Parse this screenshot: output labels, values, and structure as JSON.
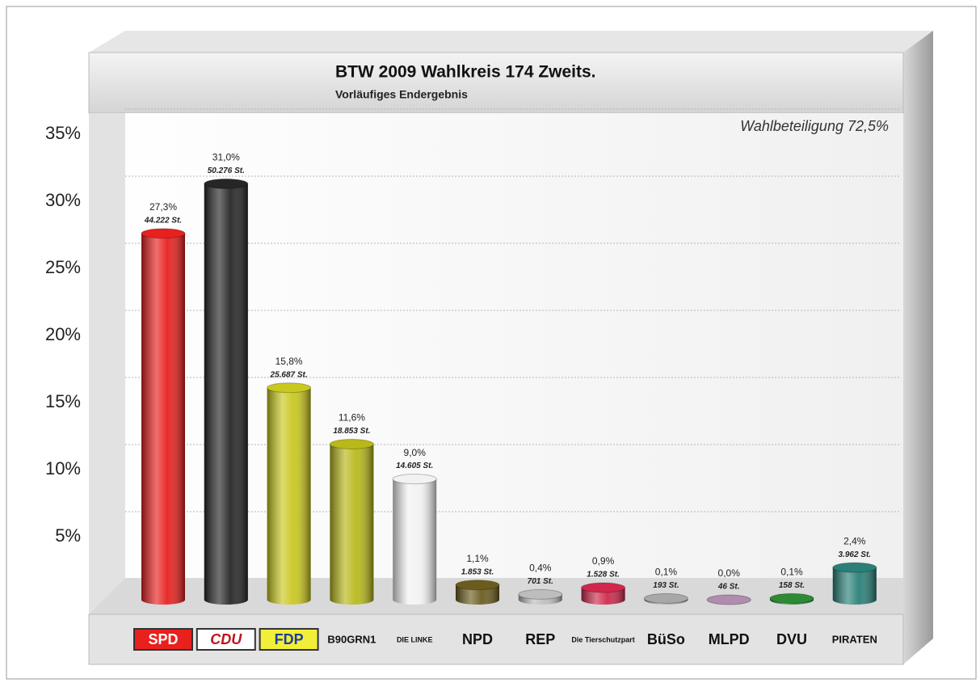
{
  "chart_data": {
    "type": "bar",
    "title": "BTW 2009 Wahlkreis 174 Zweits.",
    "subtitle": "Vorläufiges Endergebnis",
    "annotation": "Wahlbeteiligung 72,5%",
    "categories": [
      "SPD",
      "CDU",
      "FDP",
      "B90GRN1",
      "DIE LINKE",
      "NPD",
      "REP",
      "Die Tierschutzpart",
      "BüSo",
      "MLPD",
      "DVU",
      "PIRATEN"
    ],
    "values": [
      27.3,
      31.0,
      15.8,
      11.6,
      9.0,
      1.1,
      0.4,
      0.9,
      0.1,
      0.0,
      0.1,
      2.4
    ],
    "value_labels": [
      "27,3%",
      "31,0%",
      "15,8%",
      "11,6%",
      "9,0%",
      "1,1%",
      "0,4%",
      "0,9%",
      "0,1%",
      "0,0%",
      "0,1%",
      "2,4%"
    ],
    "votes": [
      44222,
      50276,
      25687,
      18853,
      14605,
      1853,
      701,
      1528,
      193,
      46,
      158,
      3962
    ],
    "vote_labels": [
      "44.222 St.",
      "50.276 St.",
      "25.687 St.",
      "18.853 St.",
      "14.605 St.",
      "1.853 St.",
      "701 St.",
      "1.528 St.",
      "193 St.",
      "46 St.",
      "158 St.",
      "3.962 St."
    ],
    "colors": [
      "#e8201e",
      "#262626",
      "#c9c81e",
      "#b8b81a",
      "#f2f2f2",
      "#6b5c1e",
      "#bdbdbd",
      "#d0284c",
      "#a8a8a8",
      "#b08cb0",
      "#2f8a36",
      "#2a8078"
    ],
    "ylim": [
      0,
      35
    ],
    "yticks": [
      {
        "value": 5,
        "label": "5%"
      },
      {
        "value": 10,
        "label": "10%"
      },
      {
        "value": 15,
        "label": "15%"
      },
      {
        "value": 20,
        "label": "20%"
      },
      {
        "value": 25,
        "label": "25%"
      },
      {
        "value": 30,
        "label": "30%"
      },
      {
        "value": 35,
        "label": "35%"
      }
    ],
    "grid": true
  }
}
